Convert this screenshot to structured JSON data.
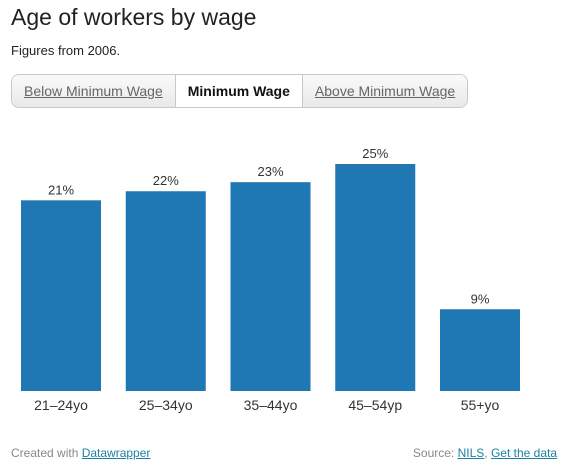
{
  "title": "Age of workers by wage",
  "subtitle": "Figures from 2006.",
  "tabs": [
    {
      "label": "Below Minimum Wage",
      "active": false
    },
    {
      "label": "Minimum Wage",
      "active": true
    },
    {
      "label": "Above Minimum Wage",
      "active": false
    }
  ],
  "colors": {
    "bar": "#1f77b4",
    "link": "#1d81a2"
  },
  "footer": {
    "created_prefix": "Created with ",
    "created_link": "Datawrapper",
    "source_prefix": "Source: ",
    "source_link": "NILS",
    "separator": ", ",
    "data_link": "Get the data"
  },
  "chart_data": {
    "type": "bar",
    "categories": [
      "21–24yo",
      "25–34yo",
      "35–44yo",
      "45–54yp",
      "55+yo"
    ],
    "values": [
      21,
      22,
      23,
      25,
      9
    ],
    "value_labels": [
      "21%",
      "22%",
      "23%",
      "25%",
      "9%"
    ],
    "unit": "%",
    "ylim": [
      0,
      25
    ],
    "grid": false,
    "legend": "none"
  }
}
